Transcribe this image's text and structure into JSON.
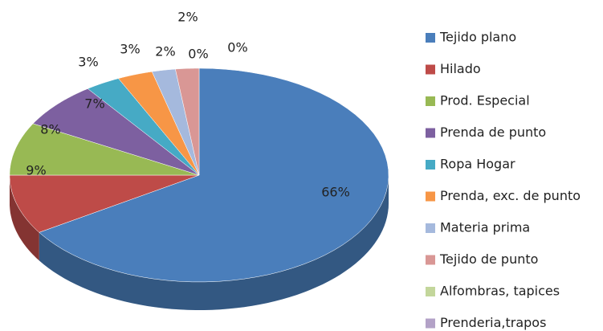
{
  "chart_data": {
    "type": "pie",
    "categories": [
      "Tejido plano",
      "Hilado",
      "Prod. Especial",
      "Prenda de punto",
      "Ropa Hogar",
      "Prenda, exc. de punto",
      "Materia prima",
      "Tejido de punto",
      "Alfombras, tapices",
      "Prenderia,trapos"
    ],
    "values": [
      66,
      9,
      8,
      7,
      3,
      3,
      2,
      2,
      0,
      0
    ],
    "value_labels": [
      "66%",
      "9%",
      "8%",
      "7%",
      "3%",
      "3%",
      "2%",
      "2%",
      "0%",
      "0%"
    ],
    "colors": [
      "#4a7ebb",
      "#be4b48",
      "#98b954",
      "#7d60a0",
      "#46aac5",
      "#f79646",
      "#a5b9dd",
      "#d99795",
      "#c3d69b",
      "#b3a2c7"
    ],
    "legend": "right"
  }
}
